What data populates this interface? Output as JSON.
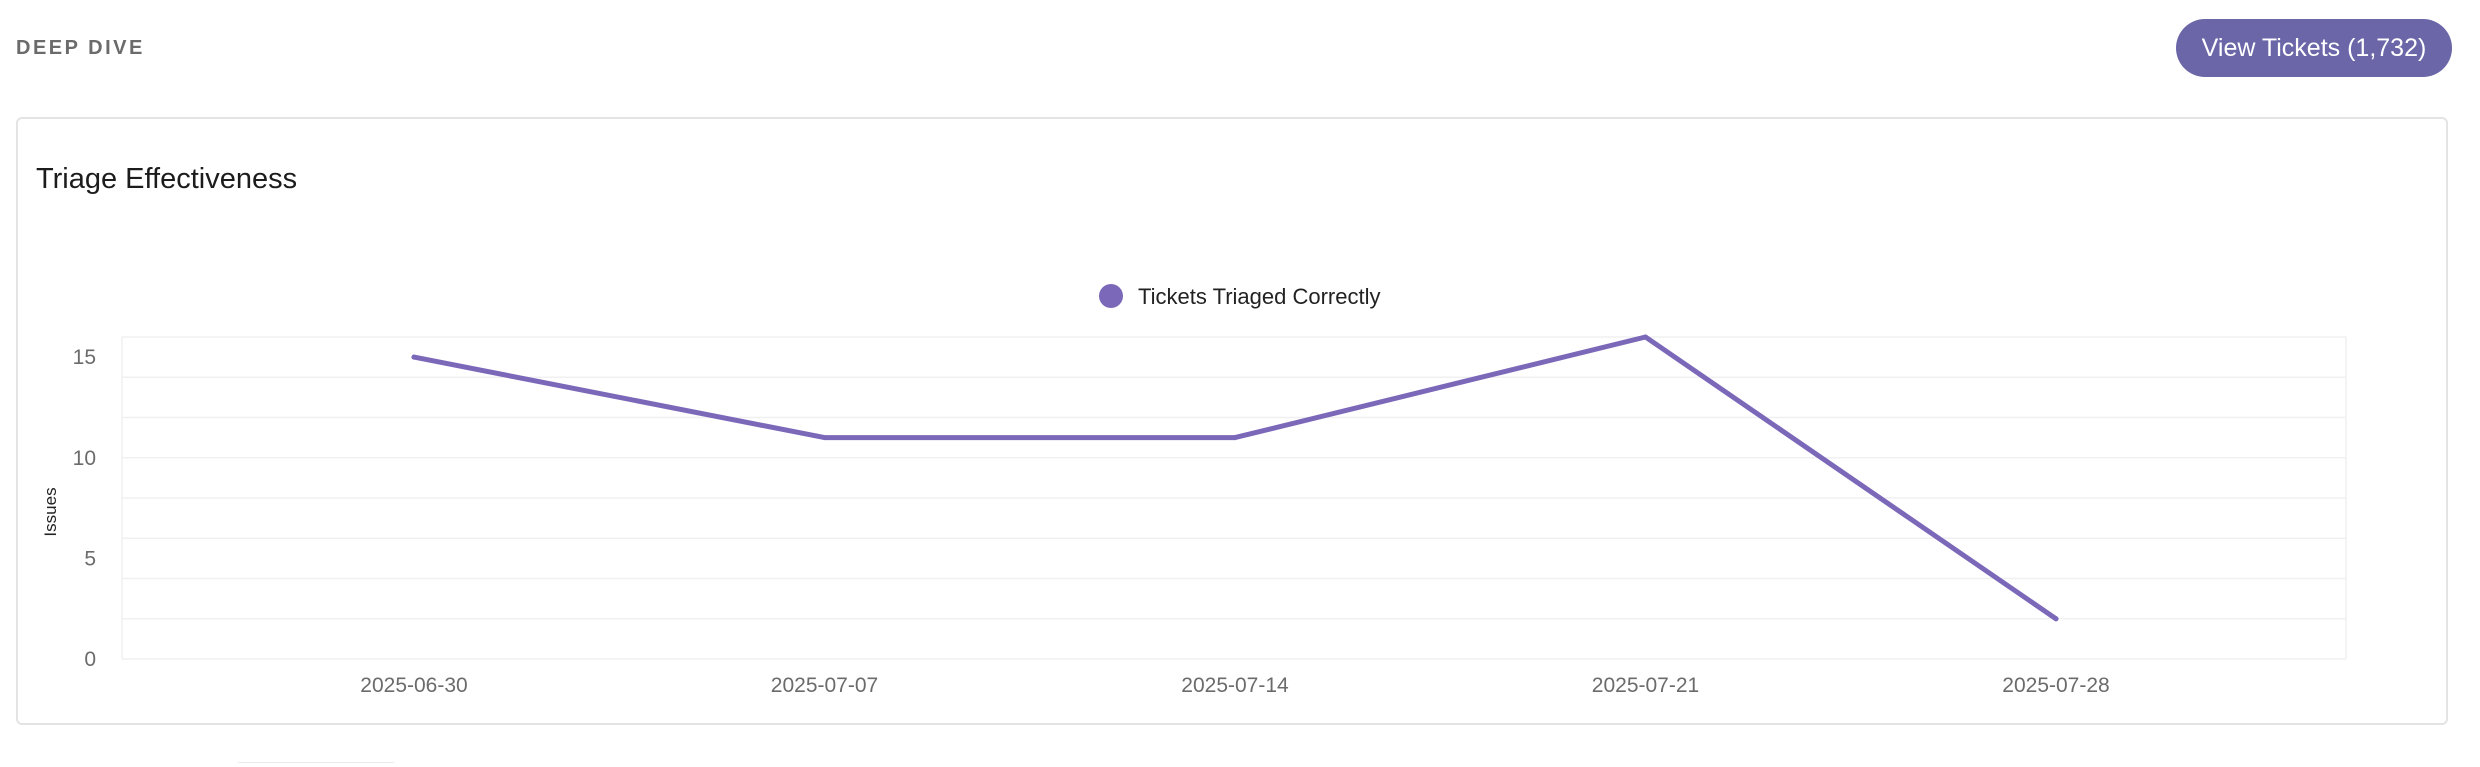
{
  "header": {
    "section_label": "DEEP DIVE",
    "view_button_label": "View Tickets (1,732)"
  },
  "card": {
    "title": "Triage Effectiveness"
  },
  "colors": {
    "accent": "#6a66a8",
    "series": "#7b68b9",
    "grid": "#f0f0f0",
    "axis_text": "#6b6b6b"
  },
  "chart_data": {
    "type": "line",
    "title": "Triage Effectiveness",
    "xlabel": "",
    "ylabel": "Issues",
    "x": [
      "2025-06-30",
      "2025-07-07",
      "2025-07-14",
      "2025-07-21",
      "2025-07-28"
    ],
    "series": [
      {
        "name": "Tickets Triaged Correctly",
        "values": [
          15,
          11,
          11,
          16,
          2
        ]
      }
    ],
    "ylim": [
      0,
      16
    ],
    "yticks": [
      0,
      5,
      10,
      15
    ],
    "grid": true,
    "legend": "top-center"
  }
}
